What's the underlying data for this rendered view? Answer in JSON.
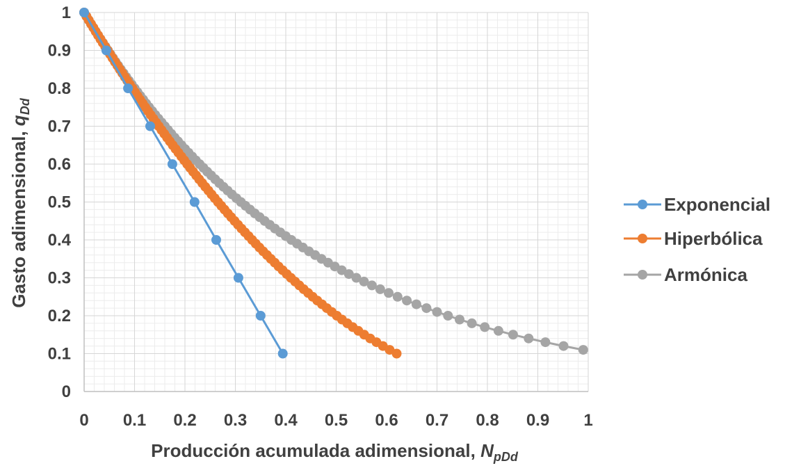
{
  "chart_data": {
    "type": "scatter",
    "xlabel": "Producción acumulada adimensional,",
    "xlabel_symbol": "N",
    "xlabel_sub": "pDd",
    "ylabel": "Gasto adimensional,",
    "ylabel_symbol": "q",
    "ylabel_sub": "Dd",
    "xlim": [
      0,
      1
    ],
    "ylim": [
      0,
      1
    ],
    "xticks": [
      "0",
      "0.1",
      "0.2",
      "0.3",
      "0.4",
      "0.5",
      "0.6",
      "0.7",
      "0.8",
      "0.9",
      "1"
    ],
    "yticks": [
      "0",
      "0.1",
      "0.2",
      "0.3",
      "0.4",
      "0.5",
      "0.6",
      "0.7",
      "0.8",
      "0.9",
      "1"
    ],
    "grid": true,
    "minor_grid": true,
    "legend_position": "right",
    "series": [
      {
        "name": "Exponencial",
        "color": "#5b9bd5",
        "model": "exponential",
        "x": [
          0,
          0.044,
          0.087,
          0.131,
          0.175,
          0.219,
          0.262,
          0.306,
          0.35,
          0.394
        ],
        "y": [
          1.0,
          0.9,
          0.8,
          0.7,
          0.6,
          0.5,
          0.4,
          0.3,
          0.2,
          0.1
        ]
      },
      {
        "name": "Hiperbólica",
        "color": "#ed7d31",
        "model": "hyperbolic",
        "b": 0.5,
        "y_range": [
          1.0,
          0.1
        ],
        "y_step": 0.01,
        "x_end": 0.62
      },
      {
        "name": "Armónica",
        "color": "#a5a5a5",
        "model": "harmonic",
        "y_range": [
          1.0,
          0.11
        ],
        "y_step": 0.01,
        "x_end": 0.99
      }
    ]
  }
}
